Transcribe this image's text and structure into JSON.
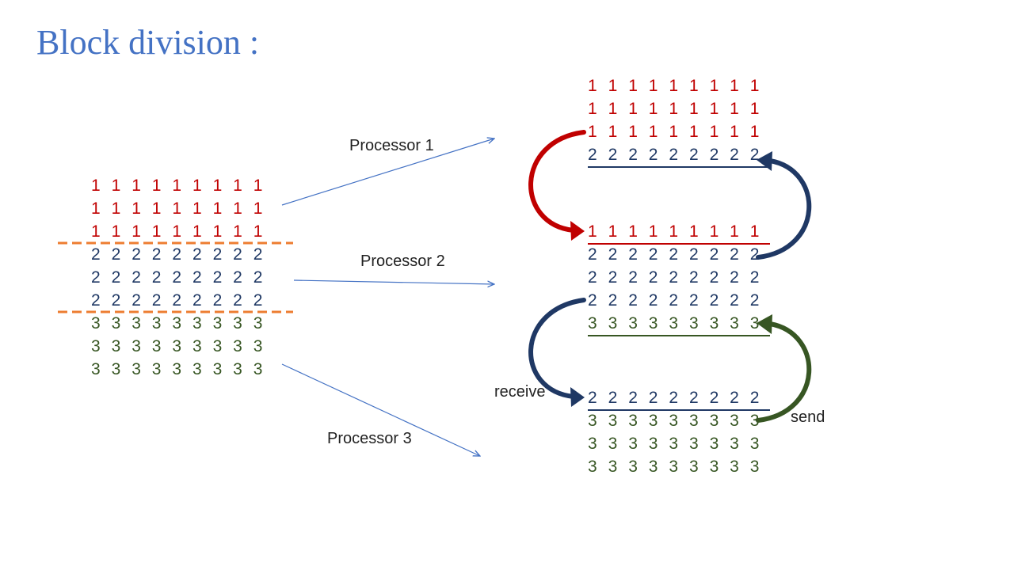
{
  "slide": {
    "title": "Block division :"
  },
  "labels": {
    "processor1": "Processor 1",
    "processor2": "Processor 2",
    "processor3": "Processor 3",
    "receive": "receive",
    "send": "send"
  },
  "colors": {
    "title": "#4472C4",
    "row1": "#C00000",
    "row2": "#1F3864",
    "row3": "#375623",
    "divider": "#ED7D31",
    "connector": "#4472C4"
  },
  "source_matrix": {
    "rows": [
      [
        "1",
        "1",
        "1",
        "1",
        "1",
        "1",
        "1",
        "1",
        "1"
      ],
      [
        "1",
        "1",
        "1",
        "1",
        "1",
        "1",
        "1",
        "1",
        "1"
      ],
      [
        "1",
        "1",
        "1",
        "1",
        "1",
        "1",
        "1",
        "1",
        "1"
      ],
      [
        "2",
        "2",
        "2",
        "2",
        "2",
        "2",
        "2",
        "2",
        "2"
      ],
      [
        "2",
        "2",
        "2",
        "2",
        "2",
        "2",
        "2",
        "2",
        "2"
      ],
      [
        "2",
        "2",
        "2",
        "2",
        "2",
        "2",
        "2",
        "2",
        "2"
      ],
      [
        "3",
        "3",
        "3",
        "3",
        "3",
        "3",
        "3",
        "3",
        "3"
      ],
      [
        "3",
        "3",
        "3",
        "3",
        "3",
        "3",
        "3",
        "3",
        "3"
      ],
      [
        "3",
        "3",
        "3",
        "3",
        "3",
        "3",
        "3",
        "3",
        "3"
      ]
    ]
  },
  "processor_blocks": [
    {
      "name": "processor-1",
      "rows": [
        [
          "1",
          "1",
          "1",
          "1",
          "1",
          "1",
          "1",
          "1",
          "1"
        ],
        [
          "1",
          "1",
          "1",
          "1",
          "1",
          "1",
          "1",
          "1",
          "1"
        ],
        [
          "1",
          "1",
          "1",
          "1",
          "1",
          "1",
          "1",
          "1",
          "1"
        ],
        [
          "2",
          "2",
          "2",
          "2",
          "2",
          "2",
          "2",
          "2",
          "2"
        ]
      ]
    },
    {
      "name": "processor-2",
      "rows": [
        [
          "1",
          "1",
          "1",
          "1",
          "1",
          "1",
          "1",
          "1",
          "1"
        ],
        [
          "2",
          "2",
          "2",
          "2",
          "2",
          "2",
          "2",
          "2",
          "2"
        ],
        [
          "2",
          "2",
          "2",
          "2",
          "2",
          "2",
          "2",
          "2",
          "2"
        ],
        [
          "2",
          "2",
          "2",
          "2",
          "2",
          "2",
          "2",
          "2",
          "2"
        ],
        [
          "3",
          "3",
          "3",
          "3",
          "3",
          "3",
          "3",
          "3",
          "3"
        ]
      ]
    },
    {
      "name": "processor-3",
      "rows": [
        [
          "2",
          "2",
          "2",
          "2",
          "2",
          "2",
          "2",
          "2",
          "2"
        ],
        [
          "3",
          "3",
          "3",
          "3",
          "3",
          "3",
          "3",
          "3",
          "3"
        ],
        [
          "3",
          "3",
          "3",
          "3",
          "3",
          "3",
          "3",
          "3",
          "3"
        ],
        [
          "3",
          "3",
          "3",
          "3",
          "3",
          "3",
          "3",
          "3",
          "3"
        ]
      ]
    }
  ]
}
